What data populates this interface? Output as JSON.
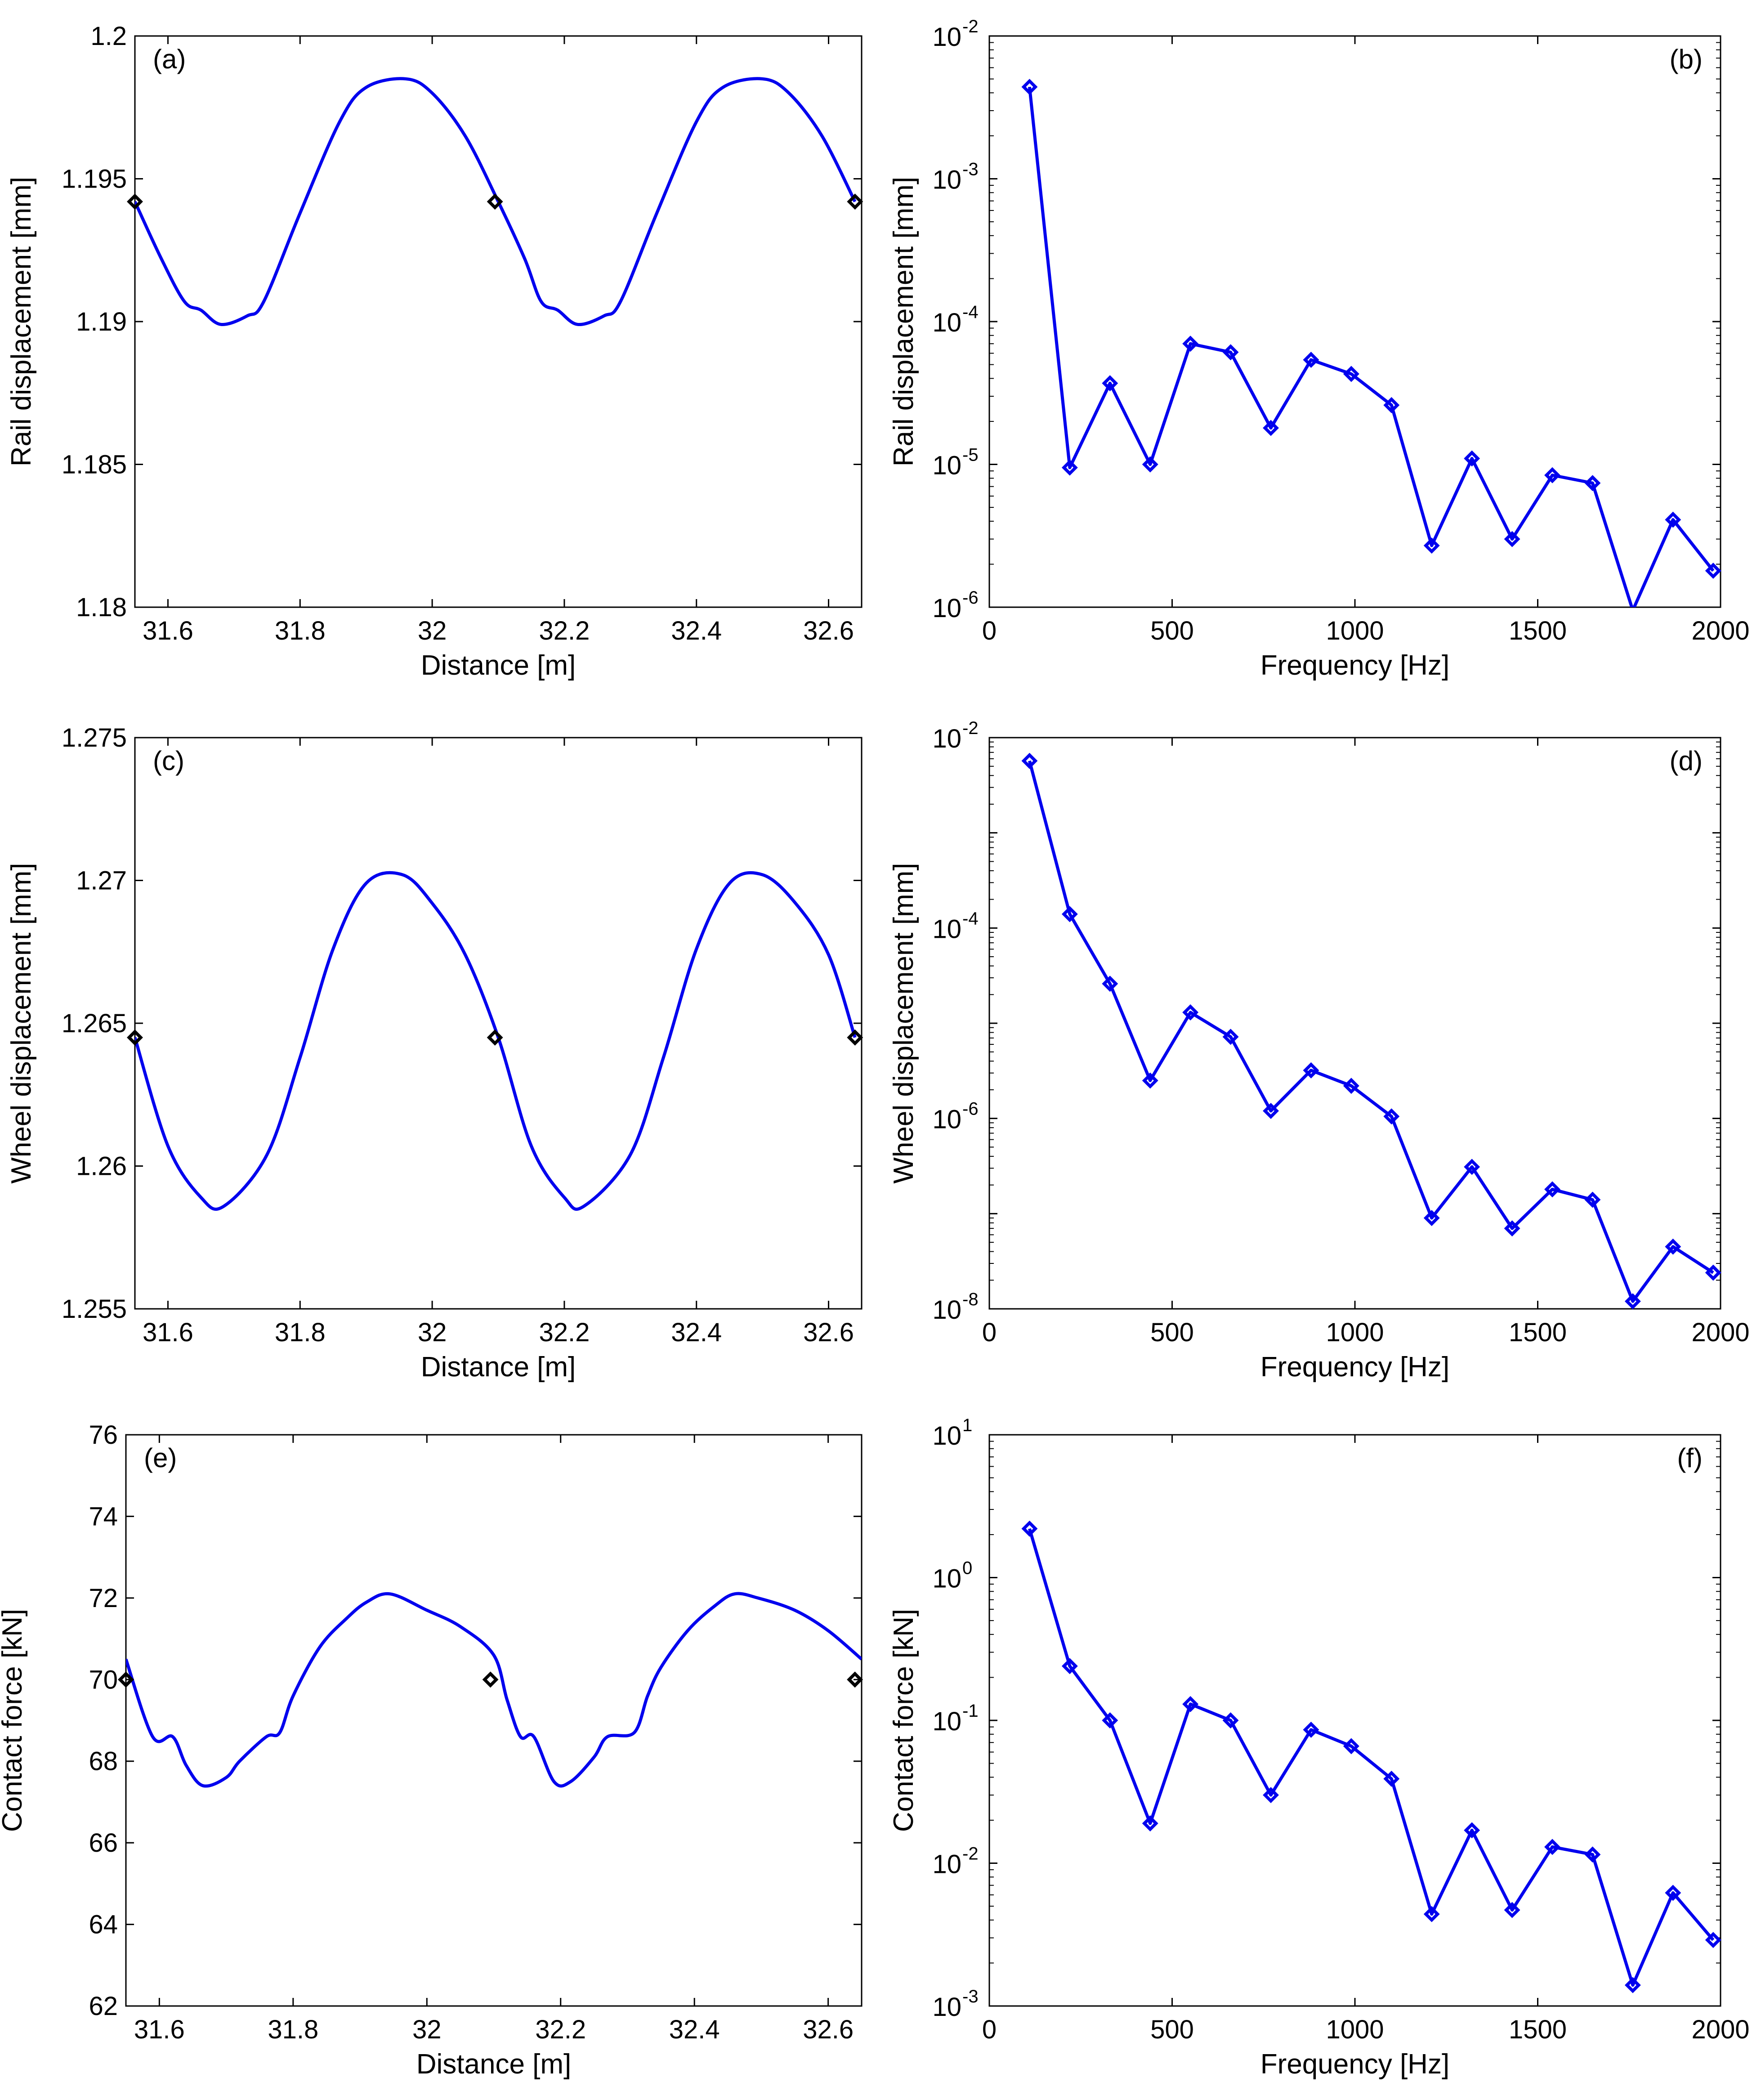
{
  "figure": {
    "colors": {
      "series": "#0000ee",
      "marker_black": "#000000",
      "axis": "#000000",
      "background": "#ffffff"
    }
  },
  "chart_data": [
    {
      "id": "a",
      "panel_label": "(a)",
      "type": "line",
      "scale": "linear",
      "xlabel": "Distance [m]",
      "ylabel": "Rail displacement [mm]",
      "xlim": [
        31.55,
        32.65
      ],
      "ylim": [
        1.18,
        1.2
      ],
      "xticks": [
        31.6,
        31.8,
        32,
        32.2,
        32.4,
        32.6
      ],
      "xtick_labels": [
        "31.6",
        "31.8",
        "32",
        "32.2",
        "32.4",
        "32.6"
      ],
      "yticks": [
        1.18,
        1.185,
        1.19,
        1.195,
        1.2
      ],
      "ytick_labels": [
        "1.18",
        "1.185",
        "1.19",
        "1.195",
        "1.2"
      ],
      "series": [
        {
          "name": "rail displacement",
          "x": [
            31.55,
            31.59,
            31.625,
            31.65,
            31.68,
            31.72,
            31.745,
            31.8,
            31.86,
            31.9,
            31.96,
            32.0,
            32.05,
            32.1,
            32.14,
            32.165,
            32.19,
            32.22,
            32.26,
            32.285,
            32.34,
            32.4,
            32.44,
            32.5,
            32.54,
            32.59,
            32.64
          ],
          "y": [
            1.1942,
            1.1922,
            1.1907,
            1.1904,
            1.1899,
            1.1902,
            1.1907,
            1.1938,
            1.197,
            1.1982,
            1.1985,
            1.198,
            1.1965,
            1.1942,
            1.1922,
            1.1907,
            1.1904,
            1.1899,
            1.1902,
            1.1907,
            1.1938,
            1.197,
            1.1982,
            1.1985,
            1.198,
            1.1965,
            1.1942
          ]
        }
      ],
      "markers": {
        "name": "reference points",
        "x": [
          31.55,
          32.095,
          32.64
        ],
        "y": [
          1.1942,
          1.1942,
          1.1942
        ]
      }
    },
    {
      "id": "b",
      "panel_label": "(b)",
      "type": "line",
      "scale": "log",
      "xlabel": "Frequency [Hz]",
      "ylabel": "Rail displacement [mm]",
      "xlim": [
        0,
        2000
      ],
      "ylim_exp": [
        -6,
        -2
      ],
      "xticks": [
        0,
        500,
        1000,
        1500,
        2000
      ],
      "xtick_labels": [
        "0",
        "500",
        "1000",
        "1500",
        "2000"
      ],
      "yticks_exp": [
        -6,
        -5,
        -4,
        -3,
        -2
      ],
      "ytick_base": "10",
      "ytick_exponents": [
        "-6",
        "-5",
        "-4",
        "-3",
        "-2"
      ],
      "series": [
        {
          "name": "rail displacement spectrum",
          "x": [
            110,
            220,
            330,
            440,
            550,
            660,
            770,
            880,
            990,
            1100,
            1210,
            1320,
            1430,
            1540,
            1650,
            1760,
            1870,
            1980
          ],
          "y": [
            0.0044,
            9.5e-06,
            3.7e-05,
            1e-05,
            7e-05,
            6.1e-05,
            1.8e-05,
            5.4e-05,
            4.3e-05,
            2.6e-05,
            2.7e-06,
            1.1e-05,
            3e-06,
            8.4e-06,
            7.4e-06,
            9.5e-07,
            4.1e-06,
            1.8e-06
          ]
        }
      ]
    },
    {
      "id": "c",
      "panel_label": "(c)",
      "type": "line",
      "scale": "linear",
      "xlabel": "Distance [m]",
      "ylabel": "Wheel displacement [mm]",
      "xlim": [
        31.55,
        32.65
      ],
      "ylim": [
        1.255,
        1.275
      ],
      "xticks": [
        31.6,
        31.8,
        32,
        32.2,
        32.4,
        32.6
      ],
      "xtick_labels": [
        "31.6",
        "31.8",
        "32",
        "32.2",
        "32.4",
        "32.6"
      ],
      "yticks": [
        1.255,
        1.26,
        1.265,
        1.27,
        1.275
      ],
      "ytick_labels": [
        "1.255",
        "1.26",
        "1.265",
        "1.27",
        "1.275"
      ],
      "series": [
        {
          "name": "wheel displacement",
          "x": [
            31.55,
            31.6,
            31.65,
            31.685,
            31.75,
            31.8,
            31.85,
            31.9,
            31.955,
            32.0,
            32.05,
            32.1,
            32.15,
            32.2,
            32.23,
            32.3,
            32.35,
            32.4,
            32.45,
            32.5,
            32.55,
            32.6,
            32.64
          ],
          "y": [
            1.2645,
            1.2607,
            1.2589,
            1.2586,
            1.2604,
            1.2638,
            1.2676,
            1.2699,
            1.2702,
            1.2692,
            1.2674,
            1.2645,
            1.2607,
            1.2589,
            1.2586,
            1.2604,
            1.2638,
            1.2676,
            1.2699,
            1.2702,
            1.2692,
            1.2674,
            1.2645
          ]
        }
      ],
      "markers": {
        "name": "reference points",
        "x": [
          31.55,
          32.095,
          32.64
        ],
        "y": [
          1.2645,
          1.2645,
          1.2645
        ]
      }
    },
    {
      "id": "d",
      "panel_label": "(d)",
      "type": "line",
      "scale": "log",
      "xlabel": "Frequency [Hz]",
      "ylabel": "Wheel displacement [mm]",
      "xlim": [
        0,
        2000
      ],
      "ylim_exp": [
        -8,
        -2
      ],
      "xticks": [
        0,
        500,
        1000,
        1500,
        2000
      ],
      "xtick_labels": [
        "0",
        "500",
        "1000",
        "1500",
        "2000"
      ],
      "yticks_exp": [
        -8,
        -6,
        -4,
        -2
      ],
      "ytick_base": "10",
      "ytick_exponents": [
        "-8",
        "-6",
        "-4",
        "-2"
      ],
      "series": [
        {
          "name": "wheel displacement spectrum",
          "x": [
            110,
            220,
            330,
            440,
            550,
            660,
            770,
            880,
            990,
            1100,
            1210,
            1320,
            1430,
            1540,
            1650,
            1760,
            1870,
            1980
          ],
          "y": [
            0.0057,
            0.00014,
            2.6e-05,
            2.5e-06,
            1.3e-05,
            7.2e-06,
            1.2e-06,
            3.2e-06,
            2.2e-06,
            1.05e-06,
            9e-08,
            3.1e-07,
            7e-08,
            1.8e-07,
            1.4e-07,
            1.2e-08,
            4.5e-08,
            2.4e-08
          ]
        }
      ]
    },
    {
      "id": "e",
      "panel_label": "(e)",
      "type": "line",
      "scale": "linear",
      "xlabel": "Distance [m]",
      "ylabel": "Contact force [kN]",
      "xlim": [
        31.55,
        32.65
      ],
      "ylim": [
        62,
        76
      ],
      "xticks": [
        31.6,
        31.8,
        32,
        32.2,
        32.4,
        32.6
      ],
      "xtick_labels": [
        "31.6",
        "31.8",
        "32",
        "32.2",
        "32.4",
        "32.6"
      ],
      "yticks": [
        62,
        64,
        66,
        68,
        70,
        72,
        74,
        76
      ],
      "ytick_labels": [
        "62",
        "64",
        "66",
        "68",
        "70",
        "72",
        "74",
        "76"
      ],
      "series": [
        {
          "name": "contact force",
          "x": [
            31.55,
            31.59,
            31.62,
            31.64,
            31.665,
            31.7,
            31.72,
            31.76,
            31.78,
            31.8,
            31.84,
            31.88,
            31.91,
            31.945,
            32.0,
            32.05,
            32.1,
            32.12,
            32.14,
            32.16,
            32.19,
            32.215,
            32.25,
            32.27,
            32.31,
            32.33,
            32.35,
            32.39,
            32.43,
            32.46,
            32.495,
            32.55,
            32.6,
            32.65
          ],
          "y": [
            70.5,
            68.6,
            68.6,
            67.9,
            67.4,
            67.6,
            68.0,
            68.6,
            68.7,
            69.6,
            70.8,
            71.5,
            71.9,
            72.1,
            71.7,
            71.3,
            70.6,
            69.5,
            68.6,
            68.6,
            67.5,
            67.5,
            68.1,
            68.6,
            68.7,
            69.6,
            70.3,
            71.2,
            71.8,
            72.1,
            72.0,
            71.7,
            71.2,
            70.5
          ]
        }
      ],
      "markers": {
        "name": "reference points",
        "x": [
          31.55,
          32.095,
          32.64
        ],
        "y": [
          70.0,
          70.0,
          70.0
        ]
      }
    },
    {
      "id": "f",
      "panel_label": "(f)",
      "type": "line",
      "scale": "log",
      "xlabel": "Frequency [Hz]",
      "ylabel": "Contact force [kN]",
      "xlim": [
        0,
        2000
      ],
      "ylim_exp": [
        -3,
        1
      ],
      "xticks": [
        0,
        500,
        1000,
        1500,
        2000
      ],
      "xtick_labels": [
        "0",
        "500",
        "1000",
        "1500",
        "2000"
      ],
      "yticks_exp": [
        -3,
        -2,
        -1,
        0,
        1
      ],
      "ytick_base": "10",
      "ytick_exponents": [
        "-3",
        "-2",
        "-1",
        "0",
        "1"
      ],
      "series": [
        {
          "name": "contact force spectrum",
          "x": [
            110,
            220,
            330,
            440,
            550,
            660,
            770,
            880,
            990,
            1100,
            1210,
            1320,
            1430,
            1540,
            1650,
            1760,
            1870,
            1980
          ],
          "y": [
            2.2,
            0.24,
            0.1,
            0.019,
            0.13,
            0.1,
            0.03,
            0.086,
            0.066,
            0.039,
            0.0044,
            0.017,
            0.0047,
            0.013,
            0.0115,
            0.0014,
            0.0062,
            0.0029
          ]
        }
      ]
    }
  ]
}
